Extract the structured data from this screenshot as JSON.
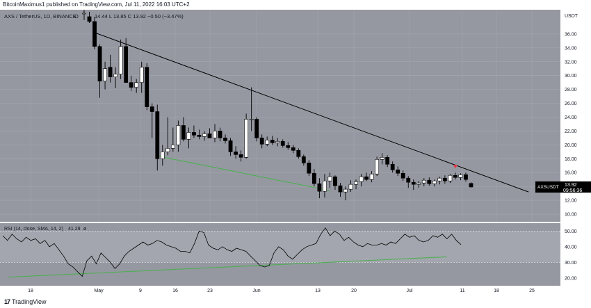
{
  "header": {
    "publisher_line": "BitcoinMaximus1 published on TradingView.com, Jul 11, 2022 16:03 UTC+2"
  },
  "chart_info": {
    "symbol_line": "AXS / TetherUS, 1D, BINANCE",
    "ohlc_o": "O",
    "ohlc_values": "14.44  L 13.85  C 13.92  −0.50 (−3.47%)",
    "currency": "USDT"
  },
  "price_tag": {
    "symbol": "AXSUSDT",
    "price": "13.92",
    "countdown": "09:56:36"
  },
  "rsi_info": {
    "label": "RSI (14, close, SMA, 14, 2)",
    "value": "41.29",
    "value_color": "#000000"
  },
  "footer": {
    "logo_mark": "17",
    "logo_text": "TradingView"
  },
  "colors": {
    "panel_bg": "#9598a1",
    "rsi_band": "#a3a6ae",
    "bull_candle": "#ffffff",
    "bear_candle": "#000000",
    "trendline": "#000000",
    "support_line": "#4caf50",
    "sell_marker": "#f23645",
    "axis_bg": "#ffffff",
    "rsi_line": "#000000"
  },
  "chart_data": [
    {
      "type": "candlestick",
      "title": "AXS / TetherUS, 1D, BINANCE",
      "y_unit": "USDT",
      "ylim": [
        8.9,
        39.5
      ],
      "y_ticks": [
        10.0,
        12.0,
        14.0,
        16.0,
        18.0,
        20.0,
        22.0,
        24.0,
        26.0,
        28.0,
        30.0,
        32.0,
        34.0,
        36.0
      ],
      "x_ticks": [
        "18",
        "May",
        "9",
        "16",
        "23",
        "Jun",
        "13",
        "20",
        "Jul",
        "11",
        "18",
        "25"
      ],
      "grid": true,
      "candles": [
        {
          "o": 39.0,
          "h": 40.0,
          "l": 38.0,
          "c": 39.0
        },
        {
          "o": 38.5,
          "h": 39.2,
          "l": 37.6,
          "c": 37.8
        },
        {
          "o": 37.8,
          "h": 38.5,
          "l": 33.8,
          "c": 34.2
        },
        {
          "o": 34.2,
          "h": 34.5,
          "l": 26.8,
          "c": 29.2
        },
        {
          "o": 29.2,
          "h": 32.0,
          "l": 28.0,
          "c": 31.0
        },
        {
          "o": 31.2,
          "h": 33.0,
          "l": 29.0,
          "c": 29.8
        },
        {
          "o": 29.8,
          "h": 31.2,
          "l": 28.2,
          "c": 30.2
        },
        {
          "o": 30.2,
          "h": 35.2,
          "l": 29.5,
          "c": 34.2
        },
        {
          "o": 34.2,
          "h": 35.4,
          "l": 29.0,
          "c": 29.0
        },
        {
          "o": 29.0,
          "h": 30.0,
          "l": 27.8,
          "c": 28.3
        },
        {
          "o": 28.3,
          "h": 29.5,
          "l": 27.5,
          "c": 29.0
        },
        {
          "o": 29.0,
          "h": 32.0,
          "l": 27.5,
          "c": 31.2
        },
        {
          "o": 31.2,
          "h": 31.8,
          "l": 25.0,
          "c": 25.5
        },
        {
          "o": 25.5,
          "h": 26.0,
          "l": 21.0,
          "c": 24.8
        },
        {
          "o": 24.8,
          "h": 25.8,
          "l": 16.3,
          "c": 18.0
        },
        {
          "o": 18.0,
          "h": 20.0,
          "l": 17.0,
          "c": 19.0
        },
        {
          "o": 19.0,
          "h": 24.0,
          "l": 18.5,
          "c": 19.5
        },
        {
          "o": 19.5,
          "h": 22.5,
          "l": 19.0,
          "c": 20.0
        },
        {
          "o": 20.0,
          "h": 23.5,
          "l": 19.0,
          "c": 22.8
        },
        {
          "o": 22.8,
          "h": 24.0,
          "l": 20.5,
          "c": 20.8
        },
        {
          "o": 20.8,
          "h": 22.5,
          "l": 19.5,
          "c": 21.8
        },
        {
          "o": 21.8,
          "h": 22.8,
          "l": 21.0,
          "c": 21.4
        },
        {
          "o": 21.4,
          "h": 22.2,
          "l": 20.8,
          "c": 21.2
        },
        {
          "o": 21.2,
          "h": 22.0,
          "l": 20.6,
          "c": 21.6
        },
        {
          "o": 21.6,
          "h": 22.4,
          "l": 21.0,
          "c": 21.0
        },
        {
          "o": 21.0,
          "h": 23.0,
          "l": 20.4,
          "c": 22.0
        },
        {
          "o": 22.0,
          "h": 22.5,
          "l": 20.5,
          "c": 21.0
        },
        {
          "o": 21.0,
          "h": 21.5,
          "l": 20.2,
          "c": 20.6
        },
        {
          "o": 20.6,
          "h": 21.0,
          "l": 18.4,
          "c": 19.0
        },
        {
          "o": 19.0,
          "h": 19.8,
          "l": 18.0,
          "c": 18.6
        },
        {
          "o": 18.6,
          "h": 19.2,
          "l": 17.6,
          "c": 18.2
        },
        {
          "o": 18.2,
          "h": 24.5,
          "l": 18.0,
          "c": 23.7
        },
        {
          "o": 23.7,
          "h": 28.3,
          "l": 22.0,
          "c": 23.7
        },
        {
          "o": 23.7,
          "h": 24.0,
          "l": 20.5,
          "c": 21.0
        },
        {
          "o": 21.0,
          "h": 21.5,
          "l": 19.5,
          "c": 20.1
        },
        {
          "o": 20.1,
          "h": 21.2,
          "l": 19.8,
          "c": 20.7
        },
        {
          "o": 20.7,
          "h": 21.3,
          "l": 20.0,
          "c": 20.3
        },
        {
          "o": 20.3,
          "h": 21.0,
          "l": 19.8,
          "c": 20.5
        },
        {
          "o": 20.5,
          "h": 20.8,
          "l": 19.6,
          "c": 19.9
        },
        {
          "o": 19.9,
          "h": 20.4,
          "l": 19.3,
          "c": 19.6
        },
        {
          "o": 19.6,
          "h": 20.0,
          "l": 18.8,
          "c": 19.2
        },
        {
          "o": 19.2,
          "h": 19.5,
          "l": 18.0,
          "c": 18.3
        },
        {
          "o": 18.3,
          "h": 18.6,
          "l": 17.0,
          "c": 17.4
        },
        {
          "o": 17.4,
          "h": 17.8,
          "l": 15.5,
          "c": 15.9
        },
        {
          "o": 15.9,
          "h": 16.5,
          "l": 14.0,
          "c": 14.4
        },
        {
          "o": 14.4,
          "h": 15.2,
          "l": 12.3,
          "c": 13.3
        },
        {
          "o": 13.3,
          "h": 15.8,
          "l": 12.4,
          "c": 14.8
        },
        {
          "o": 14.8,
          "h": 16.0,
          "l": 13.8,
          "c": 15.4
        },
        {
          "o": 15.4,
          "h": 15.6,
          "l": 13.5,
          "c": 14.1
        },
        {
          "o": 14.1,
          "h": 14.5,
          "l": 12.5,
          "c": 13.2
        },
        {
          "o": 13.2,
          "h": 14.0,
          "l": 12.0,
          "c": 13.6
        },
        {
          "o": 13.6,
          "h": 14.9,
          "l": 13.2,
          "c": 14.3
        },
        {
          "o": 14.3,
          "h": 15.0,
          "l": 13.6,
          "c": 14.7
        },
        {
          "o": 14.7,
          "h": 15.8,
          "l": 14.0,
          "c": 15.4
        },
        {
          "o": 15.4,
          "h": 16.0,
          "l": 14.8,
          "c": 15.0
        },
        {
          "o": 15.0,
          "h": 16.2,
          "l": 14.6,
          "c": 15.8
        },
        {
          "o": 15.8,
          "h": 18.3,
          "l": 15.5,
          "c": 17.9
        },
        {
          "o": 17.9,
          "h": 18.8,
          "l": 17.2,
          "c": 18.2
        },
        {
          "o": 18.2,
          "h": 18.5,
          "l": 16.8,
          "c": 17.2
        },
        {
          "o": 17.2,
          "h": 17.6,
          "l": 16.0,
          "c": 16.4
        },
        {
          "o": 16.4,
          "h": 16.9,
          "l": 15.5,
          "c": 15.9
        },
        {
          "o": 15.9,
          "h": 16.3,
          "l": 14.8,
          "c": 15.2
        },
        {
          "o": 15.2,
          "h": 15.5,
          "l": 13.8,
          "c": 14.6
        },
        {
          "o": 14.6,
          "h": 15.0,
          "l": 13.5,
          "c": 14.3
        },
        {
          "o": 14.3,
          "h": 14.8,
          "l": 13.8,
          "c": 14.5
        },
        {
          "o": 14.5,
          "h": 15.2,
          "l": 14.0,
          "c": 14.9
        },
        {
          "o": 14.9,
          "h": 15.3,
          "l": 14.1,
          "c": 14.4
        },
        {
          "o": 14.4,
          "h": 15.0,
          "l": 14.0,
          "c": 14.8
        },
        {
          "o": 14.8,
          "h": 15.4,
          "l": 14.3,
          "c": 15.2
        },
        {
          "o": 15.2,
          "h": 15.6,
          "l": 14.4,
          "c": 14.8
        },
        {
          "o": 14.8,
          "h": 15.8,
          "l": 14.5,
          "c": 15.6
        },
        {
          "o": 15.6,
          "h": 16.0,
          "l": 15.0,
          "c": 15.3
        },
        {
          "o": 15.3,
          "h": 15.9,
          "l": 14.9,
          "c": 15.7
        },
        {
          "o": 15.7,
          "h": 16.0,
          "l": 14.7,
          "c": 15.0
        },
        {
          "o": 14.44,
          "h": 14.6,
          "l": 13.85,
          "c": 13.92
        }
      ],
      "trendline": [
        [
          2,
          36.2
        ],
        [
          85,
          13.2
        ]
      ],
      "support_line": [
        [
          14,
          18.4
        ],
        [
          47,
          13.4
        ]
      ],
      "sell_marker_index": 71
    },
    {
      "type": "line",
      "title": "RSI (14, close, SMA, 14, 2)",
      "ylim": [
        15,
        55
      ],
      "y_ticks": [
        20.0,
        30.0,
        40.0,
        50.0
      ],
      "band": [
        30,
        50
      ],
      "series": [
        {
          "name": "RSI",
          "values": [
            47,
            44,
            48,
            45,
            43,
            46,
            44,
            45,
            42,
            44,
            40,
            42,
            38,
            34,
            29,
            27,
            24,
            21,
            31,
            34,
            29,
            36,
            33,
            30,
            26,
            29,
            34,
            37,
            39,
            41,
            43,
            41,
            42,
            44,
            43,
            41,
            40,
            39,
            37,
            37,
            36,
            42,
            50,
            49,
            41,
            39,
            38,
            40,
            38,
            37,
            39,
            38,
            37,
            34,
            31,
            28,
            27,
            28,
            36,
            40,
            38,
            34,
            32,
            35,
            38,
            40,
            41,
            42,
            48,
            52,
            47,
            50,
            48,
            44,
            46,
            43,
            41,
            40,
            42,
            41,
            41,
            42,
            41,
            43,
            42,
            45,
            48,
            46,
            47,
            44,
            43,
            44,
            47,
            46,
            48,
            45,
            48,
            44,
            41.29
          ]
        }
      ],
      "support_line": [
        [
          1,
          20.5
        ],
        [
          95,
          33.5
        ]
      ]
    }
  ]
}
